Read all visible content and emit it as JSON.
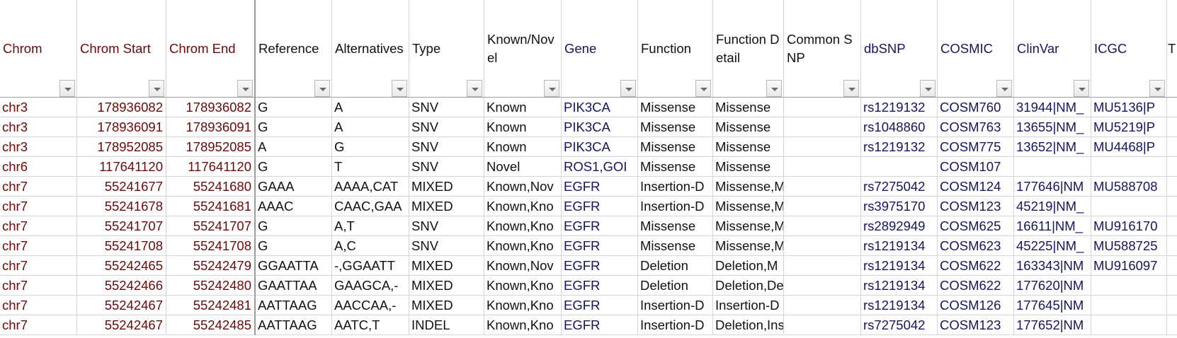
{
  "columns": [
    {
      "label": "Chrom",
      "color": "#6b0a0a"
    },
    {
      "label": "Chrom Start",
      "color": "#6b0a0a"
    },
    {
      "label": "Chrom End",
      "color": "#6b0a0a"
    },
    {
      "label": "Reference",
      "color": "#111111"
    },
    {
      "label": "Alternatives",
      "color": "#111111"
    },
    {
      "label": "Type",
      "color": "#111111"
    },
    {
      "label": "Known/Novel",
      "color": "#111111"
    },
    {
      "label": "Gene",
      "color": "#16165e"
    },
    {
      "label": "Function",
      "color": "#111111"
    },
    {
      "label": "Function Detail",
      "color": "#111111"
    },
    {
      "label": "Common SNP",
      "color": "#111111"
    },
    {
      "label": "dbSNP",
      "color": "#16165e"
    },
    {
      "label": "COSMIC",
      "color": "#16165e"
    },
    {
      "label": "ClinVar",
      "color": "#16165e"
    },
    {
      "label": "ICGC",
      "color": "#16165e"
    },
    {
      "label": "T",
      "color": "#111111"
    }
  ],
  "rows": [
    [
      "chr3",
      "178936082",
      "178936082",
      "G",
      "A",
      "SNV",
      "Known",
      "PIK3CA",
      "Missense",
      "Missense",
      "",
      "rs1219132",
      "COSM760",
      "31944|NM_",
      "MU5136|P",
      ""
    ],
    [
      "chr3",
      "178936091",
      "178936091",
      "G",
      "A",
      "SNV",
      "Known",
      "PIK3CA",
      "Missense",
      "Missense",
      "",
      "rs1048860",
      "COSM763",
      "13655|NM_",
      "MU5219|P",
      ""
    ],
    [
      "chr3",
      "178952085",
      "178952085",
      "A",
      "G",
      "SNV",
      "Known",
      "PIK3CA",
      "Missense",
      "Missense",
      "",
      "rs1219132",
      "COSM775",
      "13652|NM_",
      "MU4468|P",
      ""
    ],
    [
      "chr6",
      "117641120",
      "117641120",
      "G",
      "T",
      "SNV",
      "Novel",
      "ROS1,GOI",
      "Missense",
      "Missense",
      "",
      "",
      "COSM107",
      "",
      "",
      ""
    ],
    [
      "chr7",
      "55241677",
      "55241680",
      "GAAA",
      "AAAA,CAT",
      "MIXED",
      "Known,Nov",
      "EGFR",
      "Insertion-D",
      "Missense,M",
      "",
      "rs7275042",
      "COSM124",
      "177646|NM",
      "MU588708",
      ""
    ],
    [
      "chr7",
      "55241678",
      "55241681",
      "AAAC",
      "CAAC,GAA",
      "MIXED",
      "Known,Kno",
      "EGFR",
      "Insertion-D",
      "Missense,M",
      "",
      "rs3975170",
      "COSM123",
      "45219|NM_",
      "",
      ""
    ],
    [
      "chr7",
      "55241707",
      "55241707",
      "G",
      "A,T",
      "SNV",
      "Known,Kno",
      "EGFR",
      "Missense",
      "Missense,M",
      "",
      "rs2892949",
      "COSM625",
      "16611|NM_",
      "MU916170",
      ""
    ],
    [
      "chr7",
      "55241708",
      "55241708",
      "G",
      "A,C",
      "SNV",
      "Known,Kno",
      "EGFR",
      "Missense",
      "Missense,M",
      "",
      "rs1219134",
      "COSM623",
      "45225|NM_",
      "MU588725",
      ""
    ],
    [
      "chr7",
      "55242465",
      "55242479",
      "GGAATTA",
      "-,GGAATT",
      "MIXED",
      "Known,Nov",
      "EGFR",
      "Deletion",
      "Deletion,M",
      "",
      "rs1219134",
      "COSM622",
      "163343|NM",
      "MU916097",
      ""
    ],
    [
      "chr7",
      "55242466",
      "55242480",
      "GAATTAA",
      "GAAGCA,-",
      "MIXED",
      "Known,Kno",
      "EGFR",
      "Deletion",
      "Deletion,De",
      "",
      "rs1219134",
      "COSM622",
      "177620|NM",
      "",
      ""
    ],
    [
      "chr7",
      "55242467",
      "55242481",
      "AATTAAG",
      "AACCAA,-",
      "MIXED",
      "Known,Kno",
      "EGFR",
      "Insertion-D",
      "Insertion-D",
      "",
      "rs1219134",
      "COSM126",
      "177645|NM",
      "",
      ""
    ],
    [
      "chr7",
      "55242467",
      "55242485",
      "AATTAAG",
      "AATC,T",
      "INDEL",
      "Known,Kno",
      "EGFR",
      "Insertion-D",
      "Deletion,Ins",
      "",
      "rs7275042",
      "COSM123",
      "177652|NM",
      "",
      ""
    ]
  ]
}
